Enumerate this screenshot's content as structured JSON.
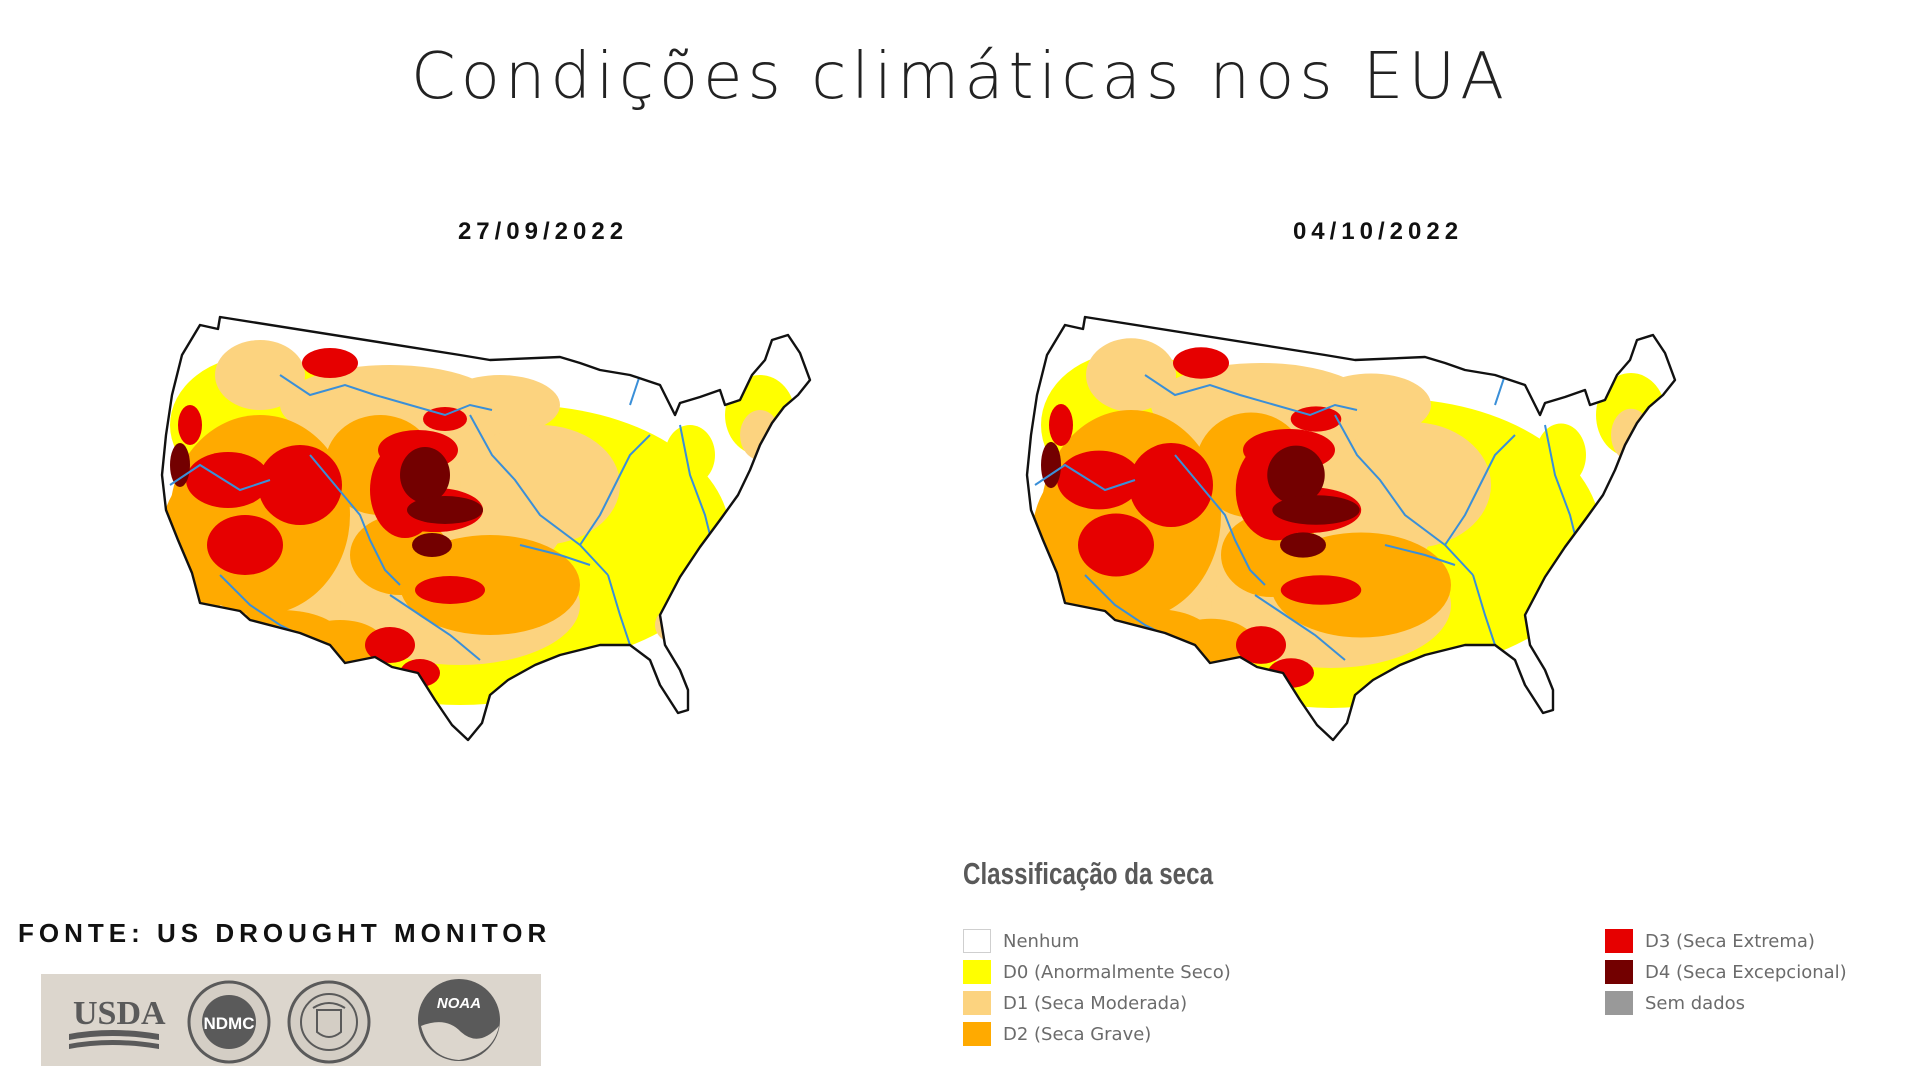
{
  "title": "Condições climáticas nos EUA",
  "maps": [
    {
      "date": "27/09/2022"
    },
    {
      "date": "04/10/2022"
    }
  ],
  "legend": {
    "title": "Classificação da seca",
    "items": [
      {
        "label": "Nenhum",
        "color": "#ffffff"
      },
      {
        "label": "D0 (Anormalmente Seco)",
        "color": "#ffff00"
      },
      {
        "label": "D1 (Seca Moderada)",
        "color": "#fcd37f"
      },
      {
        "label": "D2 (Seca Grave)",
        "color": "#ffaa00"
      },
      {
        "label": "D3 (Seca Extrema)",
        "color": "#e60000"
      },
      {
        "label": "D4 (Seca Excepcional)",
        "color": "#730000"
      },
      {
        "label": "Sem dados",
        "color": "#999999"
      }
    ]
  },
  "source": "FONTE: US DROUGHT MONITOR",
  "logos": {
    "usda": "USDA",
    "ndmc": "NDMC",
    "commerce": "DEPARTMENT OF COMMERCE",
    "noaa": "NOAA"
  }
}
